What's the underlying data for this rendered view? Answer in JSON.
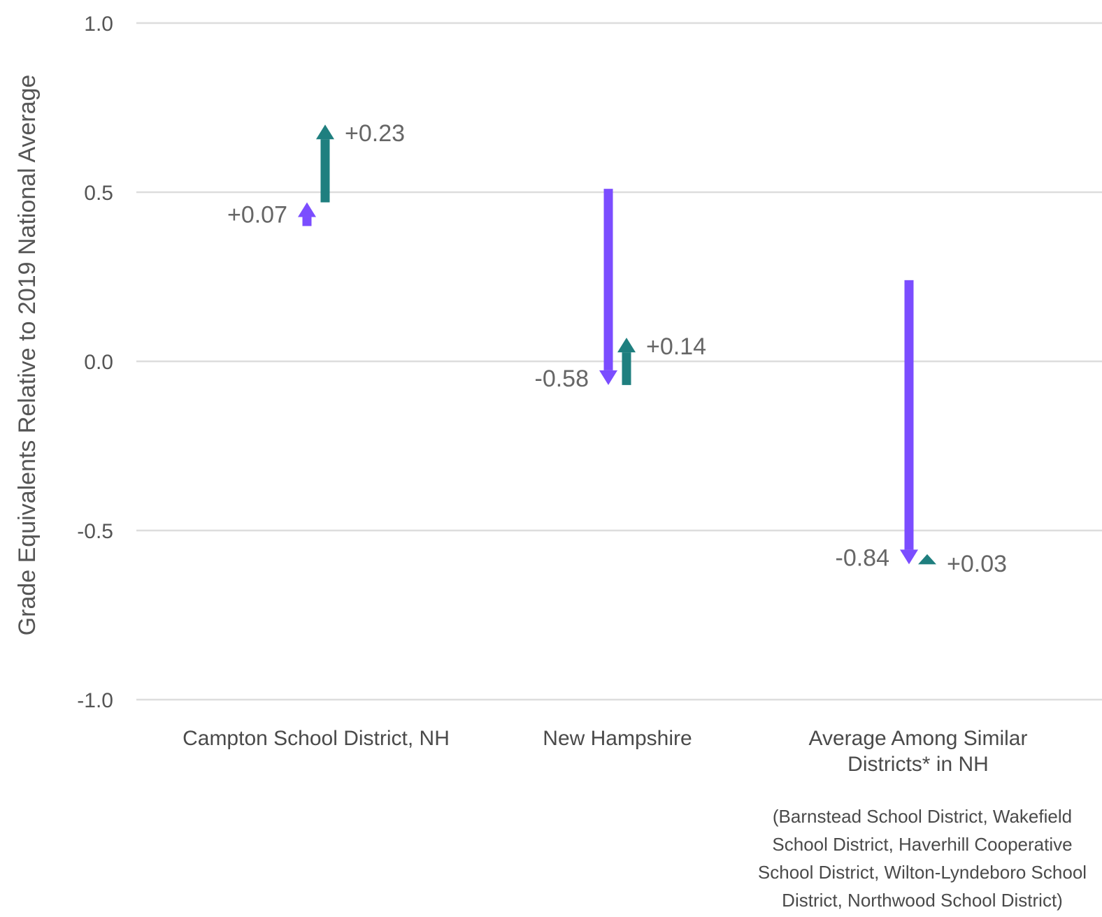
{
  "chart_data": {
    "type": "arrow",
    "ylabel": "Grade Equivalents Relative to 2019 National Average",
    "ylim": [
      -1.0,
      1.0
    ],
    "yticks": [
      1.0,
      0.5,
      0.0,
      -0.5,
      -1.0
    ],
    "ytick_labels": [
      "1.0",
      "0.5",
      "0.0",
      "-0.5",
      "-1.0"
    ],
    "grid": true,
    "colors": {
      "first_change": "#7b4dff",
      "second_change": "#1f7f7f"
    },
    "categories": [
      {
        "label_lines": [
          "Campton School District, NH"
        ],
        "note_lines": [],
        "first": {
          "start": 0.4,
          "end": 0.47,
          "label": "+0.07"
        },
        "second": {
          "start": 0.47,
          "end": 0.7,
          "label": "+0.23"
        }
      },
      {
        "label_lines": [
          "New Hampshire"
        ],
        "note_lines": [],
        "first": {
          "start": 0.51,
          "end": -0.07,
          "label": "-0.58"
        },
        "second": {
          "start": -0.07,
          "end": 0.07,
          "label": "+0.14"
        }
      },
      {
        "label_lines": [
          "Average Among Similar",
          "Districts* in NH"
        ],
        "note_lines": [
          "(Barnstead School District, Wakefield",
          "School District, Haverhill Cooperative",
          "School District, Wilton-Lyndeboro School",
          "District, Northwood School District)"
        ],
        "first": {
          "start": 0.24,
          "end": -0.6,
          "label": "-0.84"
        },
        "second": {
          "start": -0.6,
          "end": -0.57,
          "label": "+0.03"
        }
      }
    ]
  }
}
